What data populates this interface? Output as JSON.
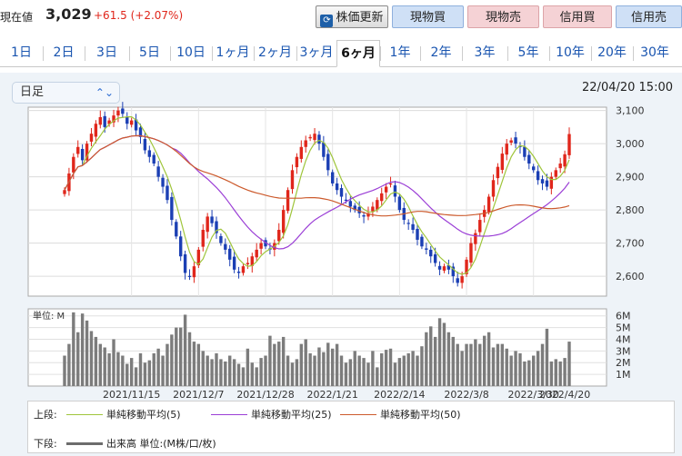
{
  "header": {
    "price_label": "現在値",
    "price_value": "3,029",
    "price_change": "+61.5 (+2.07%)",
    "update_button": "株価更新",
    "buttons": [
      "現物買",
      "現物売",
      "信用買",
      "信用売"
    ]
  },
  "tabs": [
    "1日",
    "2日",
    "3日",
    "5日",
    "10日",
    "1ヶ月",
    "2ヶ月",
    "3ヶ月",
    "6ヶ月",
    "1年",
    "2年",
    "3年",
    "5年",
    "10年",
    "20年",
    "30年"
  ],
  "active_tab": "6ヶ月",
  "period_select": "日足",
  "datetime": "22/04/20 15:00",
  "colors": {
    "up": "#e0261b",
    "down": "#1b3fb4",
    "ma5": "#9fc53b",
    "ma25": "#9b3fd6",
    "ma50": "#cc5a2c",
    "volume": "#7c7c7c"
  },
  "chart_data": [
    {
      "type": "candlestick",
      "y_ticks": [
        "3,100",
        "3,000",
        "2,900",
        "2,800",
        "2,700",
        "2,600"
      ],
      "ylim": [
        2540,
        3110
      ],
      "x_labels": [
        "2021/11/15",
        "2021/12/7",
        "2021/12/28",
        "2022/1/21",
        "2022/2/14",
        "2022/3/8",
        "2022/3/30",
        "2022/4/20"
      ],
      "close": [
        2860,
        2910,
        2960,
        2990,
        2950,
        3000,
        3030,
        3060,
        3080,
        3050,
        3070,
        3085,
        3100,
        3090,
        3060,
        3070,
        3040,
        3020,
        2980,
        2960,
        2940,
        2900,
        2870,
        2830,
        2770,
        2720,
        2660,
        2610,
        2600,
        2630,
        2680,
        2740,
        2780,
        2760,
        2730,
        2700,
        2680,
        2650,
        2620,
        2610,
        2630,
        2640,
        2660,
        2680,
        2700,
        2690,
        2680,
        2700,
        2740,
        2800,
        2860,
        2920,
        2960,
        2990,
        3010,
        3020,
        3030,
        3000,
        2960,
        2920,
        2880,
        2860,
        2840,
        2830,
        2810,
        2800,
        2790,
        2780,
        2790,
        2810,
        2830,
        2850,
        2870,
        2880,
        2840,
        2800,
        2770,
        2760,
        2740,
        2710,
        2690,
        2680,
        2660,
        2640,
        2620,
        2630,
        2620,
        2600,
        2580,
        2600,
        2650,
        2700,
        2730,
        2770,
        2800,
        2840,
        2890,
        2930,
        2970,
        3000,
        3010,
        3000,
        2990,
        2960,
        2940,
        2920,
        2890,
        2880,
        2870,
        2900,
        2920,
        2940,
        2968,
        3029
      ],
      "series": [
        {
          "name": "単純移動平均(5)",
          "period": 5
        },
        {
          "name": "単純移動平均(25)",
          "period": 25
        },
        {
          "name": "単純移動平均(50)",
          "period": 50
        }
      ]
    },
    {
      "type": "bar",
      "ylabel": "単位: M",
      "y_ticks": [
        "6M",
        "5M",
        "4M",
        "3M",
        "2M",
        "1M"
      ],
      "ylim": [
        0,
        6.6
      ],
      "values": [
        2.6,
        3.6,
        6.3,
        4.6,
        6.2,
        5.6,
        4.7,
        4.2,
        3.6,
        3.3,
        2.8,
        4.0,
        2.9,
        2.6,
        1.9,
        2.4,
        1.6,
        2.8,
        2.0,
        2.2,
        2.8,
        3.2,
        2.6,
        3.6,
        4.4,
        5.0,
        5.0,
        6.1,
        4.6,
        3.8,
        3.6,
        3.0,
        2.6,
        2.3,
        2.8,
        2.3,
        2.1,
        2.6,
        2.3,
        1.9,
        1.6,
        3.2,
        2.0,
        1.6,
        2.4,
        2.6,
        4.3,
        3.6,
        3.8,
        4.2,
        2.6,
        2.0,
        2.3,
        3.6,
        4.0,
        2.8,
        2.6,
        3.3,
        2.9,
        3.7,
        3.2,
        3.6,
        2.6,
        2.0,
        2.3,
        3.0,
        2.6,
        2.4,
        2.0,
        3.0,
        1.6,
        2.8,
        3.1,
        3.2,
        2.0,
        2.4,
        2.6,
        2.8,
        3.0,
        2.6,
        3.4,
        4.6,
        5.1,
        4.2,
        5.8,
        5.4,
        4.6,
        4.2,
        3.6,
        3.0,
        3.6,
        3.6,
        4.0,
        3.6,
        4.3,
        4.6,
        3.3,
        3.6,
        3.6,
        3.2,
        2.6,
        3.0,
        2.8,
        2.1,
        2.2,
        2.6,
        3.0,
        3.6,
        4.9,
        2.1,
        2.3,
        2.1,
        2.4,
        3.8
      ],
      "series": [
        {
          "name": "出来高 単位:(M株/口/枚)"
        }
      ]
    }
  ],
  "legend": {
    "upper_label": "上段:",
    "lower_label": "下段:"
  }
}
